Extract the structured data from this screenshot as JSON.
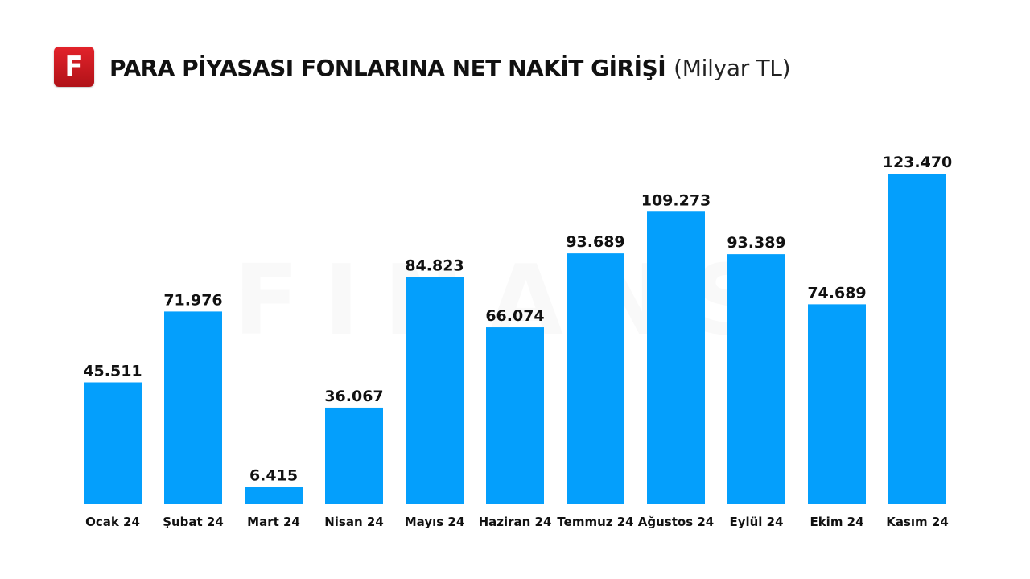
{
  "header": {
    "logo_letter": "F",
    "title": "PARA PİYASASI FONLARINA NET NAKİT GİRİŞİ",
    "unit": "(Milyar TL)"
  },
  "watermark": "FINANS",
  "colors": {
    "bar": "#049FFC",
    "logo": "#D71E26",
    "text": "#111111"
  },
  "chart_data": {
    "type": "bar",
    "title": "PARA PİYASASI FONLARINA NET NAKİT GİRİŞİ (Milyar TL)",
    "categories": [
      "Ocak 24",
      "Şubat 24",
      "Mart 24",
      "Nisan 24",
      "Mayıs 24",
      "Haziran 24",
      "Temmuz 24",
      "Ağustos 24",
      "Eylül 24",
      "Ekim 24",
      "Kasım 24"
    ],
    "values": [
      45.511,
      71.976,
      6.415,
      36.067,
      84.823,
      66.074,
      93.689,
      109.273,
      93.389,
      74.689,
      123.47
    ],
    "value_labels": [
      "45.511",
      "71.976",
      "6.415",
      "36.067",
      "84.823",
      "66.074",
      "93.689",
      "109.273",
      "93.389",
      "74.689",
      "123.470"
    ],
    "xlabel": "",
    "ylabel": "",
    "ylim": [
      0,
      123.47
    ],
    "grid": false,
    "legend": "none"
  }
}
